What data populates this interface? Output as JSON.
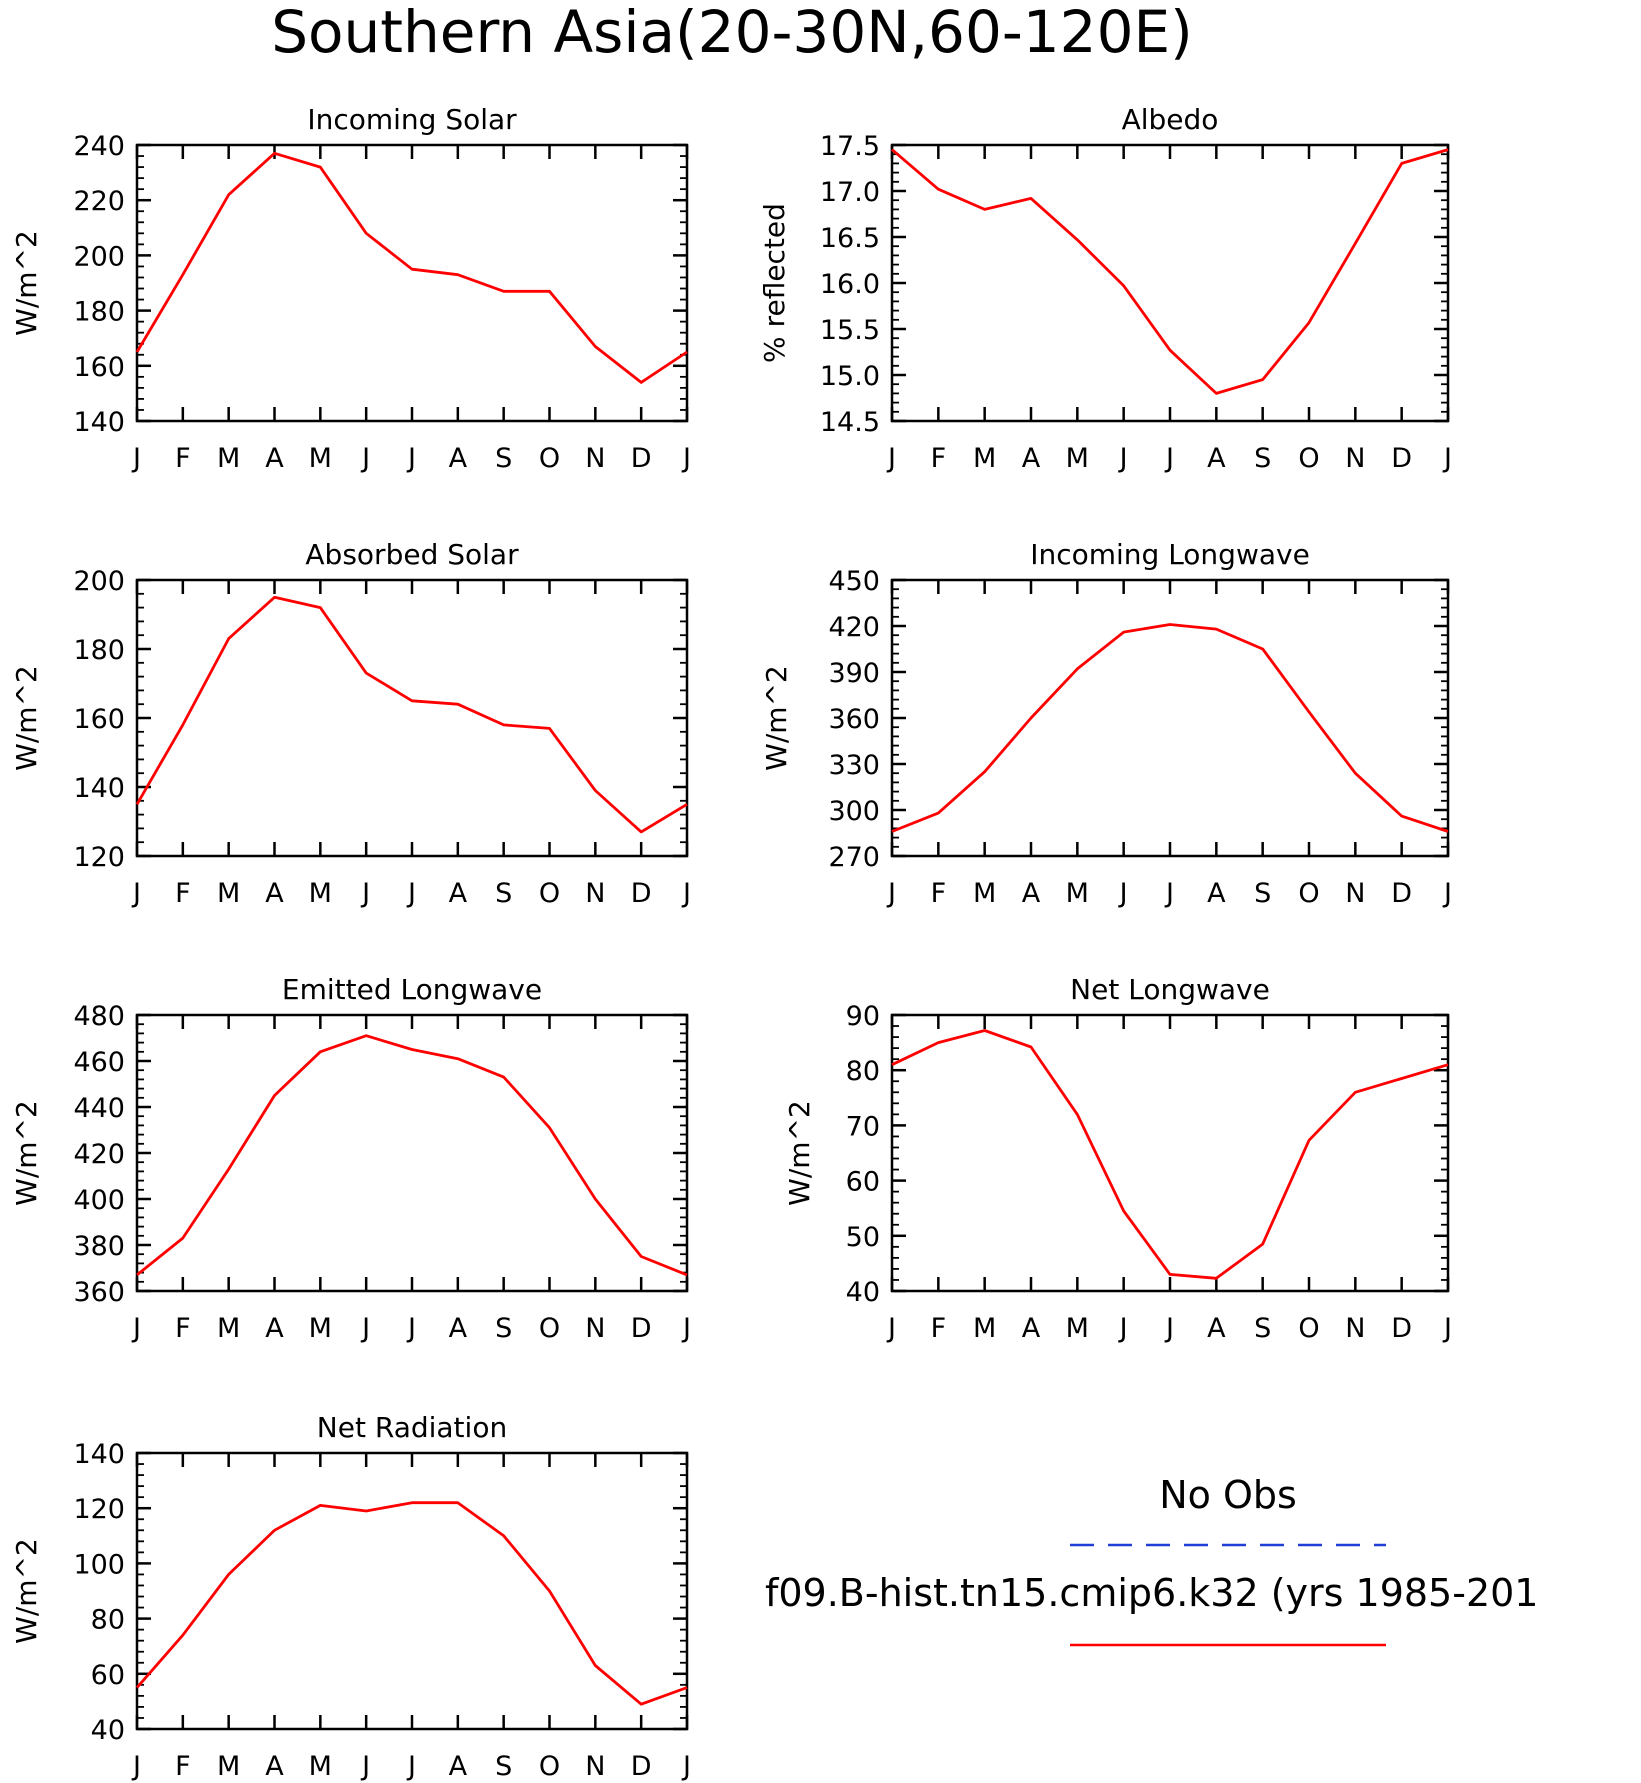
{
  "figure": {
    "title": "Southern Asia(20-30N,60-120E)"
  },
  "legend": {
    "obs_label": "No Obs",
    "obs_color": "#1f3fd6",
    "obs_style": "dashed",
    "model_label": "f09.B-hist.tn15.cmip6.k32 (yrs 1985-201",
    "model_color": "#ff0000",
    "model_style": "solid"
  },
  "chart_data": [
    {
      "id": "incoming-solar",
      "type": "line",
      "title": "Incoming Solar",
      "ylabel": "W/m^2",
      "categories": [
        "J",
        "F",
        "M",
        "A",
        "M",
        "J",
        "J",
        "A",
        "S",
        "O",
        "N",
        "D",
        "J"
      ],
      "ylim": [
        140,
        240
      ],
      "yticks": [
        140,
        160,
        180,
        200,
        220,
        240
      ],
      "series": [
        {
          "color": "#ff0000",
          "values": [
            165,
            193,
            222,
            237,
            232,
            208,
            195,
            193,
            187,
            187,
            167,
            154,
            165
          ]
        }
      ]
    },
    {
      "id": "albedo",
      "type": "line",
      "title": "Albedo",
      "ylabel": "% reflected",
      "categories": [
        "J",
        "F",
        "M",
        "A",
        "M",
        "J",
        "J",
        "A",
        "S",
        "O",
        "N",
        "D",
        "J"
      ],
      "ylim": [
        14.5,
        17.5
      ],
      "yticks": [
        "14.5",
        "15.0",
        "15.5",
        "16.0",
        "16.5",
        "17.0",
        "17.5"
      ],
      "series": [
        {
          "color": "#ff0000",
          "values": [
            17.45,
            17.02,
            16.8,
            16.92,
            16.47,
            15.97,
            15.27,
            14.8,
            14.95,
            15.57,
            16.43,
            17.3,
            17.45
          ]
        }
      ]
    },
    {
      "id": "absorbed-solar",
      "type": "line",
      "title": "Absorbed Solar",
      "ylabel": "W/m^2",
      "categories": [
        "J",
        "F",
        "M",
        "A",
        "M",
        "J",
        "J",
        "A",
        "S",
        "O",
        "N",
        "D",
        "J"
      ],
      "ylim": [
        120,
        200
      ],
      "yticks": [
        120,
        140,
        160,
        180,
        200
      ],
      "series": [
        {
          "color": "#ff0000",
          "values": [
            135,
            158,
            183,
            195,
            192,
            173,
            165,
            164,
            158,
            157,
            139,
            127,
            135
          ]
        }
      ]
    },
    {
      "id": "incoming-longwave",
      "type": "line",
      "title": "Incoming Longwave",
      "ylabel": "W/m^2",
      "categories": [
        "J",
        "F",
        "M",
        "A",
        "M",
        "J",
        "J",
        "A",
        "S",
        "O",
        "N",
        "D",
        "J"
      ],
      "ylim": [
        270,
        450
      ],
      "yticks": [
        270,
        300,
        330,
        360,
        390,
        420,
        450
      ],
      "series": [
        {
          "color": "#ff0000",
          "values": [
            286,
            298,
            325,
            360,
            392,
            416,
            421,
            418,
            405,
            364,
            324,
            296,
            286
          ]
        }
      ]
    },
    {
      "id": "emitted-longwave",
      "type": "line",
      "title": "Emitted Longwave",
      "ylabel": "W/m^2",
      "categories": [
        "J",
        "F",
        "M",
        "A",
        "M",
        "J",
        "J",
        "A",
        "S",
        "O",
        "N",
        "D",
        "J"
      ],
      "ylim": [
        360,
        480
      ],
      "yticks": [
        360,
        380,
        400,
        420,
        440,
        460,
        480
      ],
      "series": [
        {
          "color": "#ff0000",
          "values": [
            367,
            383,
            413,
            445,
            464,
            471,
            465,
            461,
            453,
            431,
            400,
            375,
            367
          ]
        }
      ]
    },
    {
      "id": "net-longwave",
      "type": "line",
      "title": "Net Longwave",
      "ylabel": "W/m^2",
      "categories": [
        "J",
        "F",
        "M",
        "A",
        "M",
        "J",
        "J",
        "A",
        "S",
        "O",
        "N",
        "D",
        "J"
      ],
      "ylim": [
        40,
        90
      ],
      "yticks": [
        40,
        50,
        60,
        70,
        80,
        90
      ],
      "series": [
        {
          "color": "#ff0000",
          "values": [
            81,
            85,
            87.2,
            84.2,
            72,
            54.5,
            43,
            42.3,
            48.5,
            67.3,
            76,
            78.5,
            81
          ]
        }
      ]
    },
    {
      "id": "net-radiation",
      "type": "line",
      "title": "Net Radiation",
      "ylabel": "W/m^2",
      "categories": [
        "J",
        "F",
        "M",
        "A",
        "M",
        "J",
        "J",
        "A",
        "S",
        "O",
        "N",
        "D",
        "J"
      ],
      "ylim": [
        40,
        140
      ],
      "yticks": [
        40,
        60,
        80,
        100,
        120,
        140
      ],
      "series": [
        {
          "color": "#ff0000",
          "values": [
            55,
            74,
            96,
            112,
            121,
            119,
            122,
            122,
            110,
            90,
            63,
            49,
            55
          ]
        }
      ]
    }
  ]
}
